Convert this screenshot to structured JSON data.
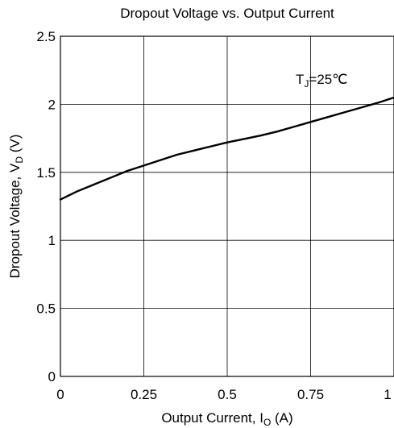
{
  "chart_data": {
    "type": "line",
    "title": "Dropout Voltage vs. Output Current",
    "xlabel": {
      "main": "Output Current, I",
      "sub": "O",
      "unit": " (A)"
    },
    "ylabel": {
      "main": "Dropout Voltage, V",
      "sub": "D",
      "unit": " (V)"
    },
    "xlim": [
      0,
      1.0
    ],
    "ylim": [
      0,
      2.5
    ],
    "xticks": [
      0,
      0.25,
      0.5,
      0.75,
      1.0
    ],
    "xtick_labels": [
      "0",
      "0.25",
      "0.5",
      "0.75",
      "1"
    ],
    "yticks": [
      0,
      0.5,
      1.0,
      1.5,
      2.0,
      2.5
    ],
    "ytick_labels": [
      "0",
      "0.5",
      "1",
      "1.5",
      "2",
      "2.5"
    ],
    "grid": true,
    "annotation": {
      "main": "T",
      "sub": "J",
      "rest": "=25℃"
    },
    "series": [
      {
        "x": [
          0,
          0.05,
          0.1,
          0.15,
          0.2,
          0.25,
          0.3,
          0.35,
          0.4,
          0.45,
          0.5,
          0.55,
          0.6,
          0.65,
          0.7,
          0.75,
          0.8,
          0.85,
          0.9,
          0.95,
          1.0
        ],
        "y": [
          1.3,
          1.36,
          1.41,
          1.46,
          1.51,
          1.55,
          1.59,
          1.63,
          1.66,
          1.69,
          1.72,
          1.745,
          1.77,
          1.8,
          1.835,
          1.87,
          1.905,
          1.94,
          1.975,
          2.01,
          2.05
        ]
      }
    ]
  }
}
